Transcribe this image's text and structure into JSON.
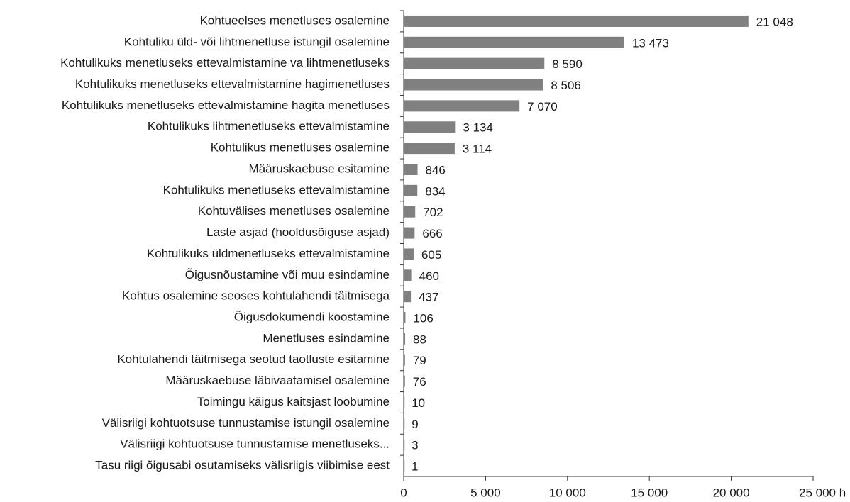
{
  "chart_data": {
    "type": "bar",
    "orientation": "horizontal",
    "color": "#808080",
    "categories": [
      "Kohtueelses menetluses osalemine",
      "Kohtuliku üld- või lihtmenetluse istungil osalemine",
      "Kohtulikuks menetluseks ettevalmistamine va lihtmenetluseks",
      "Kohtulikuks menetluseks ettevalmistamine hagimenetluses",
      "Kohtulikuks menetluseks ettevalmistamine hagita menetluses",
      "Kohtulikuks lihtmenetluseks ettevalmistamine",
      "Kohtulikus menetluses osalemine",
      "Määruskaebuse esitamine",
      "Kohtulikuks menetluseks ettevalmistamine",
      "Kohtuvälises menetluses osalemine",
      "Laste asjad (hooldusõiguse asjad)",
      "Kohtulikuks üldmenetluseks ettevalmistamine",
      "Õigusnõustamine või muu esindamine",
      "Kohtus osalemine seoses kohtulahendi täitmisega",
      "Õigusdokumendi koostamine",
      "Menetluses esindamine",
      "Kohtulahendi täitmisega seotud taotluste esitamine",
      "Määruskaebuse läbivaatamisel osalemine",
      "Toimingu käigus kaitsjast loobumine",
      "Välisriigi kohtuotsuse tunnustamise istungil osalemine",
      "Välisriigi kohtuotsuse tunnustamise menetluseks...",
      "Tasu riigi õigusabi osutamiseks välisriigis viibimise eest"
    ],
    "values": [
      21048,
      13473,
      8590,
      8506,
      7070,
      3134,
      3114,
      846,
      834,
      702,
      666,
      605,
      460,
      437,
      106,
      88,
      79,
      76,
      10,
      9,
      3,
      1
    ],
    "value_labels": [
      "21 048",
      "13 473",
      "8 590",
      "8 506",
      "7 070",
      "3 134",
      "3 114",
      "846",
      "834",
      "702",
      "666",
      "605",
      "460",
      "437",
      "106",
      "88",
      "79",
      "76",
      "10",
      "9",
      "3",
      "1"
    ],
    "xlim": [
      0,
      25000
    ],
    "xticks": [
      0,
      {
        "value": 5000,
        "label": "5 000"
      },
      {
        "value": 10000,
        "label": "10 000"
      },
      {
        "value": 15000,
        "label": "15 000"
      },
      {
        "value": 20000,
        "label": "20 000"
      },
      {
        "value": 25000,
        "label": "25 000 h"
      }
    ]
  }
}
